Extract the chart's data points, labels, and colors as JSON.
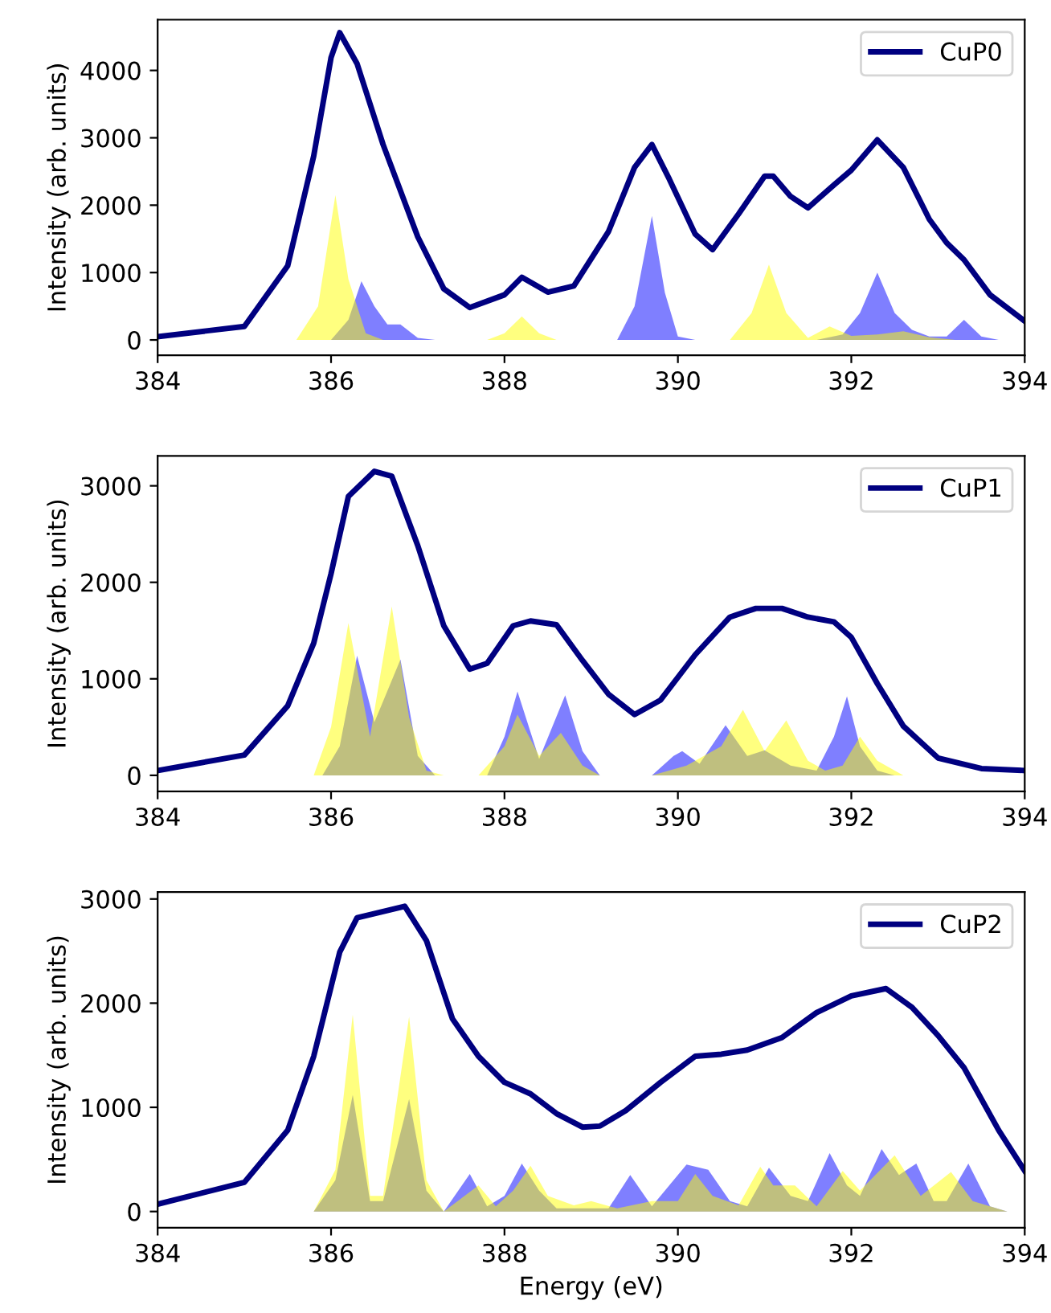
{
  "chart_data": [
    {
      "type": "line",
      "ylabel": "Intensity (arb. units)",
      "xlim": [
        384,
        394
      ],
      "xticks": [
        384,
        386,
        388,
        390,
        392,
        394
      ],
      "ylim": [
        -227,
        4753
      ],
      "yticks": [
        0,
        1000,
        2000,
        3000,
        4000
      ],
      "legend": "top right",
      "grid": false,
      "series": [
        {
          "type": "area",
          "color": "#0000ff",
          "x": [
            386.0,
            386.2,
            386.35,
            386.5,
            386.65,
            386.8,
            387.0,
            387.2,
            389.3,
            389.5,
            389.7,
            389.85,
            390.0,
            390.2,
            391.6,
            391.9,
            392.1,
            392.3,
            392.5,
            392.7,
            392.9,
            393.1,
            393.3,
            393.5,
            393.7
          ],
          "values": [
            0,
            300,
            870,
            500,
            230,
            230,
            30,
            0,
            0,
            500,
            1840,
            700,
            50,
            0,
            0,
            80,
            400,
            1000,
            400,
            150,
            50,
            50,
            300,
            50,
            0
          ]
        },
        {
          "type": "area",
          "color": "#ffff00",
          "x": [
            385.6,
            385.85,
            386.05,
            386.2,
            386.4,
            386.6,
            387.8,
            388.0,
            388.2,
            388.4,
            388.6,
            390.6,
            390.85,
            391.05,
            391.25,
            391.5,
            391.75,
            392.0,
            392.3,
            392.6,
            392.9,
            393.2
          ],
          "values": [
            0,
            500,
            2150,
            900,
            100,
            0,
            0,
            100,
            350,
            100,
            0,
            0,
            400,
            1120,
            400,
            30,
            200,
            60,
            80,
            130,
            40,
            0
          ]
        },
        {
          "name": "CuP0",
          "color": "#000080",
          "x": [
            384,
            385,
            385.5,
            385.8,
            386.0,
            386.1,
            386.3,
            386.6,
            387.0,
            387.3,
            387.6,
            388.0,
            388.2,
            388.5,
            388.8,
            389.2,
            389.5,
            389.7,
            389.9,
            390.2,
            390.4,
            390.7,
            391.0,
            391.1,
            391.3,
            391.5,
            391.8,
            392.0,
            392.3,
            392.6,
            392.9,
            393.1,
            393.3,
            393.6,
            394
          ],
          "values": [
            50,
            200,
            1100,
            2730,
            4190,
            4560,
            4100,
            2900,
            1530,
            760,
            480,
            670,
            930,
            710,
            800,
            1610,
            2560,
            2900,
            2390,
            1570,
            1340,
            1870,
            2430,
            2430,
            2130,
            1960,
            2300,
            2520,
            2970,
            2560,
            1790,
            1440,
            1190,
            670,
            280
          ]
        }
      ]
    },
    {
      "type": "line",
      "ylabel": "Intensity (arb. units)",
      "xlim": [
        384,
        394
      ],
      "xticks": [
        384,
        386,
        388,
        390,
        392,
        394
      ],
      "ylim": [
        -167,
        3310
      ],
      "yticks": [
        0,
        1000,
        2000,
        3000
      ],
      "legend": "top right",
      "grid": false,
      "series": [
        {
          "type": "area",
          "color": "#0000ff",
          "x": [
            385.9,
            386.1,
            386.3,
            386.5,
            386.8,
            387.0,
            387.2,
            387.8,
            388.0,
            388.15,
            388.4,
            388.7,
            388.9,
            389.1,
            389.7,
            389.95,
            390.05,
            390.25,
            390.55,
            390.8,
            391.0,
            391.3,
            391.6,
            391.8,
            391.95,
            392.1,
            392.3,
            392.5
          ],
          "values": [
            0,
            300,
            1240,
            550,
            1200,
            200,
            0,
            0,
            400,
            870,
            170,
            830,
            250,
            0,
            0,
            200,
            250,
            120,
            520,
            200,
            260,
            100,
            50,
            400,
            820,
            300,
            50,
            0
          ]
        },
        {
          "type": "area",
          "color": "#ffff00",
          "x": [
            385.8,
            386.0,
            386.2,
            386.45,
            386.7,
            386.9,
            387.1,
            387.3,
            387.7,
            388.0,
            388.15,
            388.4,
            388.65,
            388.9,
            389.1,
            389.7,
            390.1,
            390.5,
            390.75,
            391.0,
            391.25,
            391.5,
            391.7,
            391.9,
            392.1,
            392.3,
            392.6
          ],
          "values": [
            0,
            500,
            1580,
            400,
            1750,
            600,
            50,
            0,
            0,
            300,
            630,
            200,
            440,
            100,
            0,
            0,
            100,
            300,
            680,
            250,
            570,
            150,
            50,
            100,
            400,
            150,
            0
          ]
        },
        {
          "name": "CuP1",
          "color": "#000080",
          "x": [
            384,
            385,
            385.5,
            385.8,
            386.0,
            386.2,
            386.5,
            386.7,
            387.0,
            387.3,
            387.6,
            387.8,
            388.1,
            388.3,
            388.6,
            388.9,
            389.2,
            389.5,
            389.8,
            390.2,
            390.6,
            390.9,
            391.2,
            391.5,
            391.8,
            392.0,
            392.3,
            392.6,
            393.0,
            393.5,
            394
          ],
          "values": [
            50,
            210,
            720,
            1370,
            2090,
            2890,
            3150,
            3100,
            2380,
            1550,
            1100,
            1160,
            1550,
            1600,
            1560,
            1190,
            840,
            630,
            780,
            1250,
            1640,
            1730,
            1730,
            1640,
            1590,
            1430,
            950,
            510,
            180,
            70,
            50
          ]
        }
      ]
    },
    {
      "type": "line",
      "ylabel": "Intensity (arb. units)",
      "xlabel": "Energy (eV)",
      "xlim": [
        384,
        394
      ],
      "xticks": [
        384,
        386,
        388,
        390,
        392,
        394
      ],
      "ylim": [
        -155,
        3066
      ],
      "yticks": [
        0,
        1000,
        2000,
        3000
      ],
      "legend": "top right",
      "grid": false,
      "series": [
        {
          "type": "area",
          "color": "#0000ff",
          "x": [
            385.8,
            386.05,
            386.25,
            386.45,
            386.6,
            386.9,
            387.1,
            387.3,
            387.6,
            387.8,
            388.0,
            388.2,
            388.4,
            388.6,
            389.2,
            389.45,
            389.7,
            390.1,
            390.35,
            390.6,
            390.8,
            391.05,
            391.3,
            391.5,
            391.75,
            391.95,
            392.1,
            392.35,
            392.55,
            392.75,
            392.95,
            393.1,
            393.35,
            393.6,
            393.8
          ],
          "values": [
            0,
            300,
            1120,
            100,
            100,
            1080,
            200,
            0,
            360,
            50,
            150,
            460,
            200,
            30,
            30,
            350,
            50,
            450,
            400,
            100,
            50,
            420,
            150,
            100,
            560,
            250,
            150,
            600,
            350,
            460,
            100,
            100,
            460,
            50,
            0
          ]
        },
        {
          "type": "area",
          "color": "#ffff00",
          "x": [
            385.8,
            386.05,
            386.25,
            386.45,
            386.6,
            386.9,
            387.1,
            387.3,
            387.7,
            387.9,
            388.1,
            388.3,
            388.5,
            388.8,
            389.0,
            389.3,
            389.7,
            390.0,
            390.2,
            390.4,
            390.7,
            390.95,
            391.1,
            391.35,
            391.6,
            391.9,
            392.1,
            392.5,
            392.8,
            393.15,
            393.4,
            393.8
          ],
          "values": [
            0,
            400,
            1890,
            150,
            150,
            1870,
            300,
            0,
            250,
            50,
            200,
            440,
            150,
            60,
            100,
            30,
            100,
            100,
            360,
            150,
            60,
            430,
            250,
            250,
            50,
            390,
            200,
            540,
            150,
            380,
            100,
            0
          ]
        },
        {
          "name": "CuP2",
          "color": "#000080",
          "x": [
            384,
            385,
            385.5,
            385.8,
            386.1,
            386.3,
            386.6,
            386.85,
            387.1,
            387.4,
            387.7,
            388.0,
            388.3,
            388.6,
            388.9,
            389.1,
            389.4,
            389.8,
            390.2,
            390.5,
            390.8,
            391.2,
            391.6,
            392.0,
            392.4,
            392.7,
            393.0,
            393.3,
            393.7,
            394
          ],
          "values": [
            70,
            280,
            780,
            1490,
            2490,
            2820,
            2880,
            2930,
            2600,
            1850,
            1490,
            1240,
            1130,
            940,
            810,
            820,
            970,
            1240,
            1490,
            1510,
            1550,
            1670,
            1910,
            2070,
            2140,
            1960,
            1690,
            1380,
            780,
            390
          ]
        }
      ]
    }
  ]
}
